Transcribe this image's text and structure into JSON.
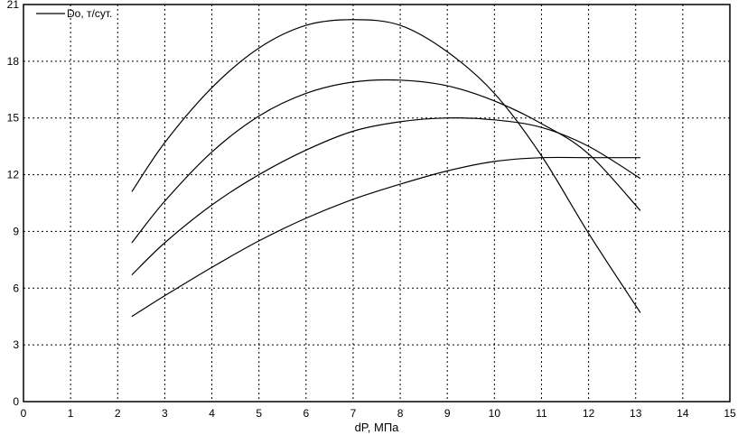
{
  "chart_data": {
    "type": "line",
    "xlabel": "dP, МПа",
    "ylabel": "",
    "xlim": [
      0,
      15
    ],
    "ylim": [
      0,
      21
    ],
    "x_ticks": [
      "0",
      "1",
      "2",
      "3",
      "4",
      "5",
      "6",
      "7",
      "8",
      "9",
      "10",
      "11",
      "12",
      "13",
      "14",
      "15"
    ],
    "y_ticks": [
      "0",
      "3",
      "6",
      "9",
      "12",
      "15",
      "18",
      "21"
    ],
    "grid": true,
    "legend_position": "top-left",
    "legend": [
      "Do, т/сут."
    ],
    "series": [
      {
        "x": [
          2.3,
          3,
          4,
          5,
          6,
          7,
          8,
          9,
          10,
          11,
          12,
          13.1
        ],
        "values": [
          11.1,
          13.7,
          16.6,
          18.7,
          19.9,
          20.2,
          19.9,
          18.5,
          16.3,
          13.0,
          8.9,
          4.7
        ]
      },
      {
        "x": [
          2.3,
          3,
          4,
          5,
          6,
          7,
          8,
          9,
          10,
          11,
          12,
          13.1
        ],
        "values": [
          8.4,
          10.6,
          13.2,
          15.1,
          16.3,
          16.9,
          17.0,
          16.7,
          15.9,
          14.7,
          13.1,
          10.1
        ]
      },
      {
        "x": [
          2.3,
          3,
          4,
          5,
          6,
          7,
          8,
          9,
          10,
          11,
          12,
          13.1
        ],
        "values": [
          6.7,
          8.4,
          10.4,
          12.0,
          13.3,
          14.3,
          14.8,
          15.0,
          14.9,
          14.5,
          13.5,
          11.8
        ]
      },
      {
        "x": [
          2.3,
          3,
          4,
          5,
          6,
          7,
          8,
          9,
          10,
          11,
          12,
          13.1
        ],
        "values": [
          4.5,
          5.6,
          7.1,
          8.5,
          9.7,
          10.7,
          11.5,
          12.2,
          12.7,
          12.9,
          12.9,
          12.9
        ]
      }
    ]
  }
}
